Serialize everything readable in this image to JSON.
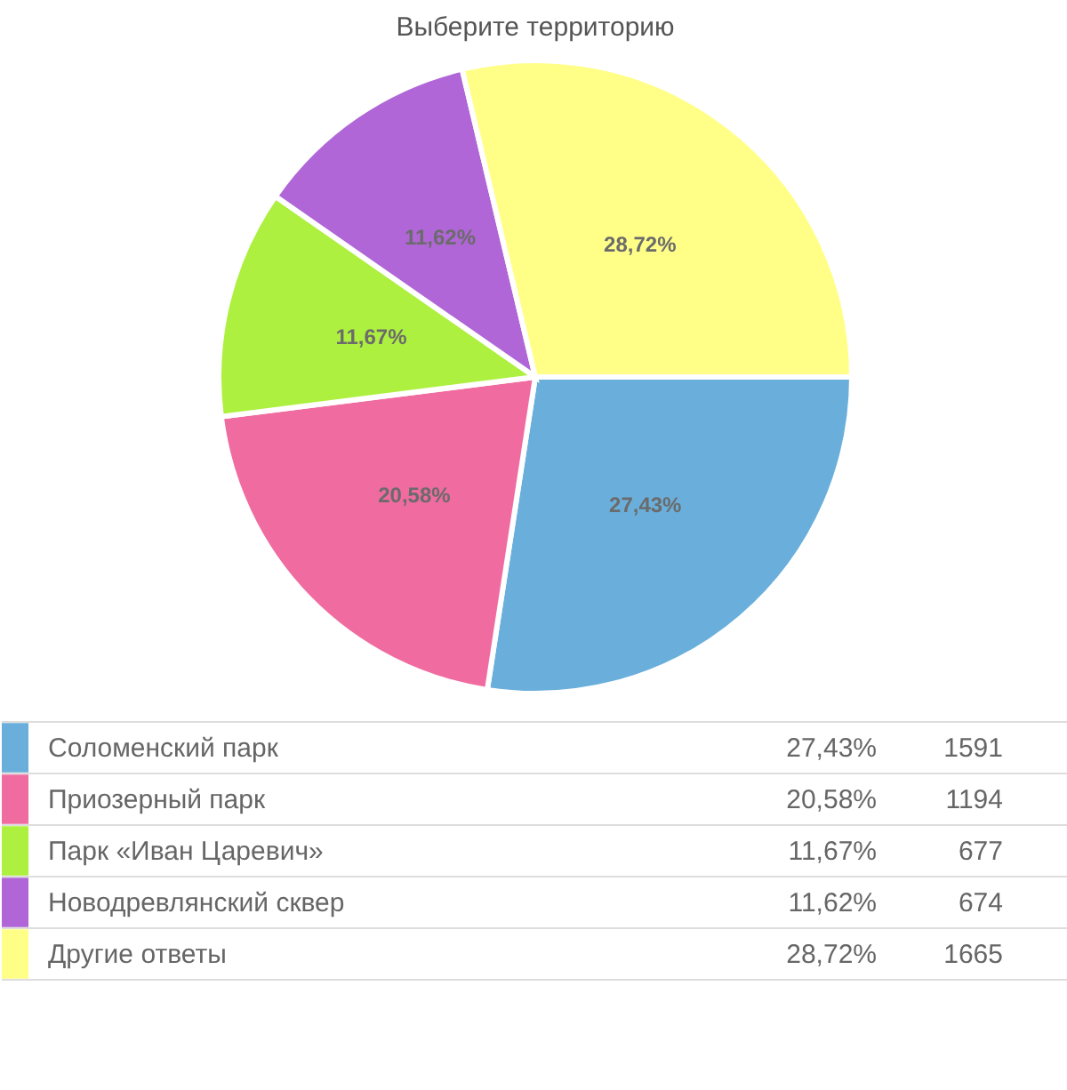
{
  "chart_data": {
    "type": "pie",
    "title": "Выберите территорию",
    "categories": [
      "Соломенский парк",
      "Приозерный парк",
      "Парк «Иван Царевич»",
      "Новодревлянский сквер",
      "Другие ответы"
    ],
    "values": [
      27.43,
      20.58,
      11.67,
      11.62,
      28.72
    ],
    "value_labels": [
      "27,43%",
      "20,58%",
      "11,67%",
      "11,62%",
      "28,72%"
    ],
    "annotations": [
      "1591",
      "1194",
      "677",
      "674",
      "1665"
    ],
    "colors": [
      "#6aafdb",
      "#f06ba0",
      "#aef03f",
      "#b066d6",
      "#ffff88"
    ],
    "legend": "bottom"
  }
}
